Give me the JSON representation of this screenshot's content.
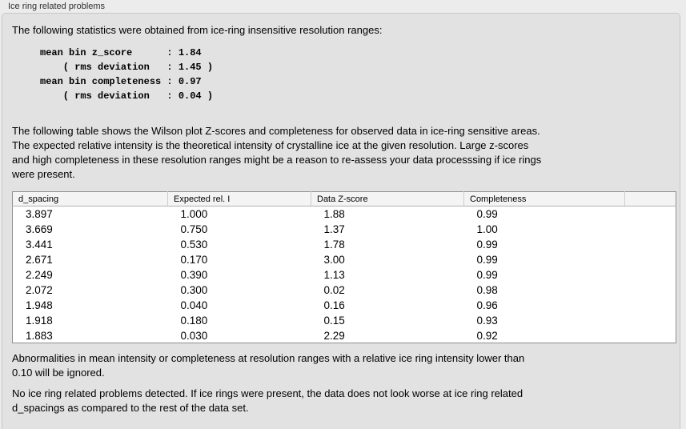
{
  "title": "Ice ring related problems",
  "intro": "The following statistics were obtained from ice-ring insensitive resolution ranges:",
  "stats_text": "mean bin z_score      : 1.84\n    ( rms deviation   : 1.45 )\nmean bin completeness : 0.97\n    ( rms deviation   : 0.04 )",
  "description": "The following table shows the Wilson plot Z-scores and completeness for observed data in ice-ring sensitive areas.\nThe expected relative intensity is the theoretical intensity of crystalline ice at the given resolution. Large z-scores\nand high completeness in these resolution ranges might be a reason to re-assess your data processsing if ice rings\nwere present.",
  "table": {
    "columns": [
      "d_spacing",
      "Expected rel. I",
      "Data Z-score",
      "Completeness"
    ],
    "rows": [
      [
        "3.897",
        "1.000",
        "1.88",
        "0.99"
      ],
      [
        "3.669",
        "0.750",
        "1.37",
        "1.00"
      ],
      [
        "3.441",
        "0.530",
        "1.78",
        "0.99"
      ],
      [
        "2.671",
        "0.170",
        "3.00",
        "0.99"
      ],
      [
        "2.249",
        "0.390",
        "1.13",
        "0.99"
      ],
      [
        "2.072",
        "0.300",
        "0.02",
        "0.98"
      ],
      [
        "1.948",
        "0.040",
        "0.16",
        "0.96"
      ],
      [
        "1.918",
        "0.180",
        "0.15",
        "0.93"
      ],
      [
        "1.883",
        "0.030",
        "2.29",
        "0.92"
      ]
    ]
  },
  "notes": [
    {
      "text": "Abnormalities in mean intensity or completeness at resolution ranges with a relative ice ring intensity lower than\n0.10 will be ignored."
    },
    {
      "text": "No ice ring related problems detected. If ice rings were present, the data does not look worse at ice ring related\nd_spacings as compared to the rest of the data set."
    }
  ],
  "colors": {
    "window_bg": "#ececec",
    "panel_bg": "#e2e2e2",
    "panel_border": "#c7c7c7",
    "table_border": "#8f8f8f",
    "header_bg": "#f4f4f4",
    "text": "#000000"
  }
}
